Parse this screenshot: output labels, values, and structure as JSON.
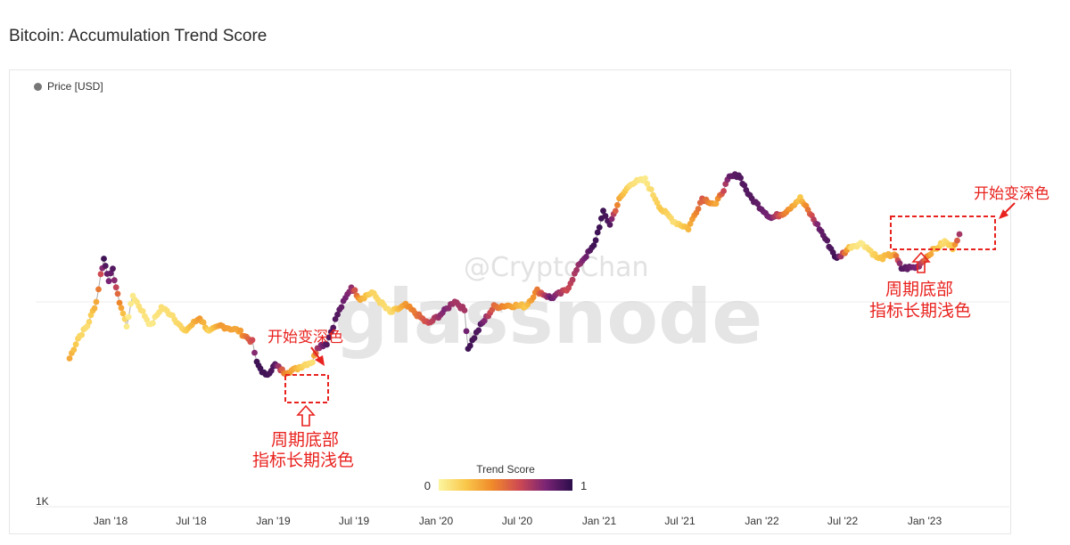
{
  "page": {
    "title": "Bitcoin: Accumulation Trend Score"
  },
  "legend": {
    "label": "Price [USD]",
    "color": "#777777"
  },
  "colorbar": {
    "title": "Trend Score",
    "min_label": "0",
    "max_label": "1",
    "stops": [
      "#fcf5a0",
      "#f9c84a",
      "#f08a2a",
      "#cf4a52",
      "#7a2475",
      "#2b0d4a"
    ]
  },
  "watermark": {
    "weibo": "@CryptoChan",
    "brand": "glassnode"
  },
  "annotations": {
    "start_dark_1": "开始变深色",
    "bottom_1_line1": "周期底部",
    "bottom_1_line2": "指标长期浅色",
    "start_dark_2": "开始变深色",
    "bottom_2_line1": "周期底部",
    "bottom_2_line2": "指标长期浅色",
    "color": "#e8221e"
  },
  "chart_data": {
    "type": "scatter",
    "title": "Bitcoin: Accumulation Trend Score",
    "y_scale": "log",
    "y_tick_labels": [
      "1K"
    ],
    "x_tick_labels": [
      "Jan '18",
      "Jul '18",
      "Jan '19",
      "Jul '19",
      "Jan '20",
      "Jul '20",
      "Jan '21",
      "Jul '21",
      "Jan '22",
      "Jul '22",
      "Jan '23"
    ],
    "color_by": "Trend Score",
    "color_range": [
      0,
      1
    ],
    "series": [
      {
        "points": [
          [
            "2017-10-01",
            4300,
            0.3
          ],
          [
            "2017-10-20",
            5800,
            0.15
          ],
          [
            "2017-11-10",
            7000,
            0.1
          ],
          [
            "2017-11-30",
            10000,
            0.3
          ],
          [
            "2017-12-10",
            15000,
            0.6
          ],
          [
            "2017-12-17",
            19000,
            0.95
          ],
          [
            "2017-12-28",
            14000,
            0.8
          ],
          [
            "2018-01-06",
            16000,
            0.9
          ],
          [
            "2018-01-17",
            11000,
            0.5
          ],
          [
            "2018-02-06",
            7000,
            0.05
          ],
          [
            "2018-02-20",
            11000,
            0.05
          ],
          [
            "2018-03-10",
            9000,
            0.1
          ],
          [
            "2018-04-01",
            7000,
            0.05
          ],
          [
            "2018-04-25",
            9200,
            0.1
          ],
          [
            "2018-05-20",
            8200,
            0.1
          ],
          [
            "2018-06-15",
            6400,
            0.15
          ],
          [
            "2018-07-20",
            7900,
            0.35
          ],
          [
            "2018-08-10",
            6400,
            0.15
          ],
          [
            "2018-09-05",
            7000,
            0.35
          ],
          [
            "2018-10-15",
            6500,
            0.3
          ],
          [
            "2018-11-15",
            5500,
            0.6
          ],
          [
            "2018-11-25",
            4000,
            0.95
          ],
          [
            "2018-12-15",
            3300,
            0.95
          ],
          [
            "2019-01-05",
            3900,
            0.9
          ],
          [
            "2019-01-25",
            3500,
            0.45
          ],
          [
            "2019-02-15",
            3600,
            0.3
          ],
          [
            "2019-03-10",
            3900,
            0.15
          ],
          [
            "2019-03-30",
            4100,
            0.1
          ],
          [
            "2019-04-10",
            5100,
            0.7
          ],
          [
            "2019-05-01",
            5400,
            0.9
          ],
          [
            "2019-05-25",
            8300,
            0.9
          ],
          [
            "2019-06-25",
            12500,
            0.75
          ],
          [
            "2019-07-15",
            10500,
            0.3
          ],
          [
            "2019-08-10",
            11500,
            0.15
          ],
          [
            "2019-09-20",
            8500,
            0.1
          ],
          [
            "2019-10-25",
            9500,
            0.35
          ],
          [
            "2019-12-15",
            7200,
            0.6
          ],
          [
            "2020-01-20",
            8700,
            0.8
          ],
          [
            "2020-02-12",
            10200,
            0.7
          ],
          [
            "2020-03-05",
            8800,
            0.7
          ],
          [
            "2020-03-13",
            5000,
            0.95
          ],
          [
            "2020-04-10",
            7000,
            0.9
          ],
          [
            "2020-05-10",
            9300,
            0.5
          ],
          [
            "2020-06-15",
            9500,
            0.35
          ],
          [
            "2020-07-20",
            9400,
            0.2
          ],
          [
            "2020-08-15",
            11800,
            0.45
          ],
          [
            "2020-09-15",
            10600,
            0.85
          ],
          [
            "2020-10-20",
            11900,
            0.6
          ],
          [
            "2020-11-20",
            18000,
            0.75
          ],
          [
            "2020-12-20",
            23000,
            0.95
          ],
          [
            "2021-01-10",
            38000,
            0.95
          ],
          [
            "2021-01-25",
            32000,
            0.9
          ],
          [
            "2021-02-15",
            46000,
            0.3
          ],
          [
            "2021-03-13",
            59000,
            0.1
          ],
          [
            "2021-04-14",
            62000,
            0.05
          ],
          [
            "2021-05-20",
            40000,
            0.2
          ],
          [
            "2021-06-20",
            33000,
            0.1
          ],
          [
            "2021-07-20",
            30000,
            0.25
          ],
          [
            "2021-08-20",
            47000,
            0.55
          ],
          [
            "2021-09-20",
            43000,
            0.3
          ],
          [
            "2021-10-20",
            64000,
            0.85
          ],
          [
            "2021-11-10",
            67000,
            0.9
          ],
          [
            "2021-12-05",
            48000,
            0.9
          ],
          [
            "2022-01-22",
            35000,
            0.8
          ],
          [
            "2022-02-20",
            38000,
            0.45
          ],
          [
            "2022-03-28",
            47000,
            0.2
          ],
          [
            "2022-05-10",
            30000,
            0.85
          ],
          [
            "2022-06-18",
            19000,
            0.95
          ],
          [
            "2022-07-20",
            23000,
            0.1
          ],
          [
            "2022-08-15",
            24000,
            0.05
          ],
          [
            "2022-09-20",
            19000,
            0.2
          ],
          [
            "2022-10-25",
            20500,
            0.3
          ],
          [
            "2022-11-10",
            16500,
            0.9
          ],
          [
            "2022-12-15",
            16800,
            0.8
          ],
          [
            "2023-01-15",
            21000,
            0.3
          ],
          [
            "2023-02-15",
            24500,
            0.1
          ],
          [
            "2023-03-05",
            22500,
            0.2
          ],
          [
            "2023-03-20",
            27500,
            0.7
          ]
        ]
      }
    ]
  }
}
